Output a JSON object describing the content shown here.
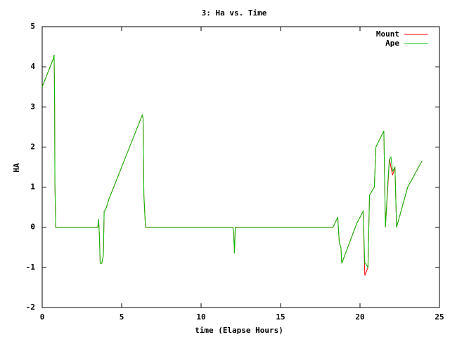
{
  "chart_data": {
    "type": "line",
    "title": "3: Ha vs. Time",
    "xlabel": "time (Elapse Hours)",
    "ylabel": "HA",
    "x": [
      0,
      0.7,
      0.75,
      0.78,
      0.8,
      0.85,
      3.5,
      3.55,
      3.6,
      3.65,
      3.75,
      3.85,
      3.9,
      4.0,
      4.2,
      5.0,
      6.3,
      6.35,
      6.4,
      6.5,
      12.0,
      12.05,
      12.1,
      12.15,
      18.3,
      18.6,
      18.7,
      18.8,
      18.85,
      19.8,
      20.2,
      20.3,
      20.35,
      20.5,
      20.6,
      20.9,
      21.0,
      21.5,
      21.6,
      21.75,
      21.85,
      21.95,
      22.05,
      22.2,
      22.3,
      23.0,
      23.9
    ],
    "series": [
      {
        "name": "Mount",
        "color": "#ff0000",
        "values": [
          3.5,
          4.2,
          4.3,
          3.2,
          1.1,
          0,
          0,
          0.2,
          -0.2,
          -0.9,
          -0.9,
          -0.7,
          0.4,
          0.45,
          0.7,
          1.5,
          2.8,
          2.7,
          0.8,
          0,
          0,
          -0.15,
          -0.65,
          0,
          0,
          0.25,
          -0.4,
          -0.5,
          -0.9,
          0.1,
          0.4,
          -1.2,
          -1.15,
          -1.0,
          0.8,
          1.0,
          2.0,
          2.4,
          0,
          1.0,
          1.7,
          1.5,
          1.3,
          1.5,
          0,
          1.0,
          1.65
        ]
      },
      {
        "name": "Ape",
        "color": "#00c000",
        "values": [
          3.5,
          4.2,
          4.3,
          3.2,
          1.1,
          0,
          0,
          0.2,
          -0.2,
          -0.9,
          -0.9,
          -0.7,
          0.4,
          0.45,
          0.7,
          1.5,
          2.8,
          2.7,
          0.8,
          0,
          0,
          -0.15,
          -0.65,
          0,
          0,
          0.25,
          -0.4,
          -0.5,
          -0.9,
          0.1,
          0.4,
          -0.9,
          -0.9,
          -1.0,
          0.8,
          1.0,
          2.0,
          2.4,
          0,
          1.1,
          1.7,
          1.75,
          1.4,
          1.5,
          0,
          1.0,
          1.65
        ]
      }
    ],
    "xlim": [
      0,
      25
    ],
    "xticks": [
      0,
      5,
      10,
      15,
      20,
      25
    ],
    "ylim": [
      -2,
      5
    ],
    "yticks": [
      -2,
      -1,
      0,
      1,
      2,
      3,
      4,
      5
    ],
    "legend": "upper right"
  }
}
